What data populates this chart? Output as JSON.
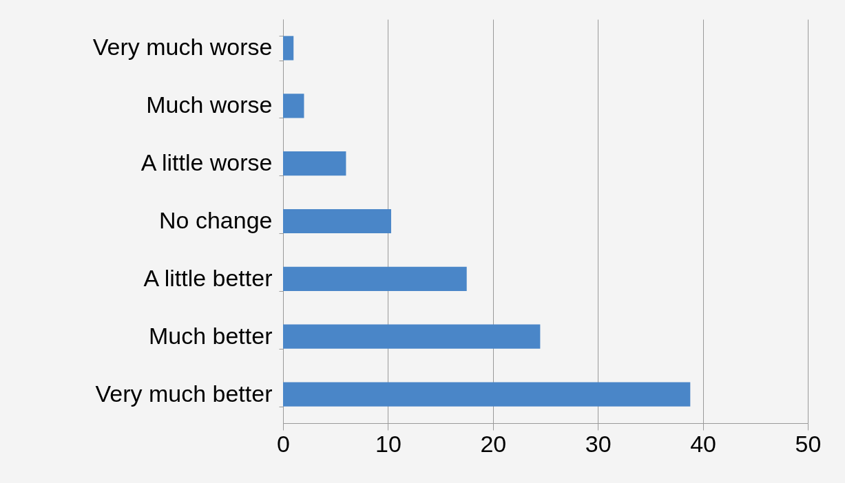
{
  "chart_data": {
    "type": "bar",
    "orientation": "horizontal",
    "categories": [
      "Very much worse",
      "Much worse",
      "A little worse",
      "No change",
      "A little better",
      "Much better",
      "Very much better"
    ],
    "values": [
      1,
      2,
      6,
      10.3,
      17.5,
      24.5,
      38.8
    ],
    "color": "#4a86c8",
    "xlim": [
      0,
      50
    ],
    "xticks": [
      0,
      10,
      20,
      30,
      40,
      50
    ],
    "grid": "x"
  }
}
